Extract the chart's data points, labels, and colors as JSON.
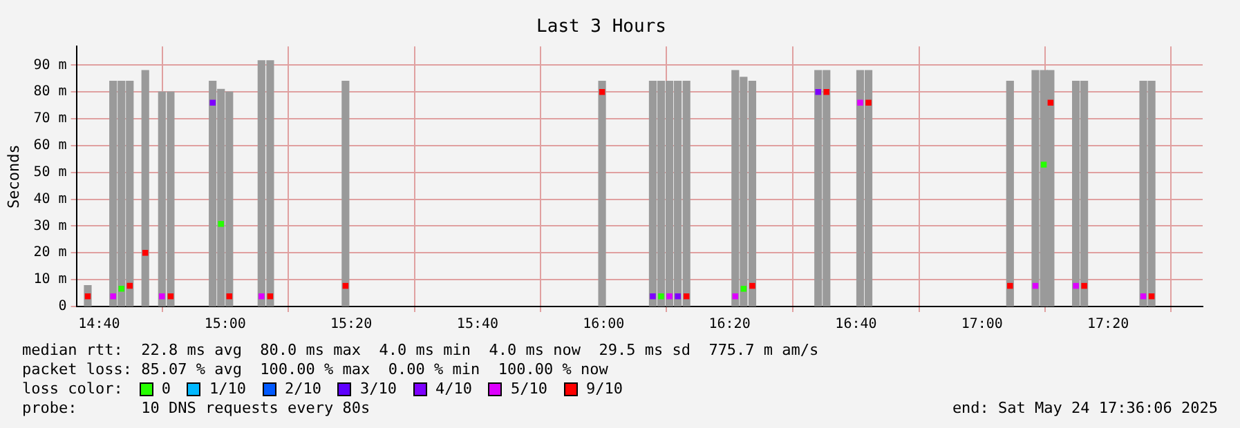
{
  "chart_data": {
    "type": "bar",
    "title": "Last 3 Hours",
    "ylabel": "Seconds",
    "legend_title": "loss color:",
    "legend": "bottom",
    "grid": true,
    "marker": "square",
    "x": [
      14.637,
      14.704,
      14.726,
      14.748,
      14.789,
      14.833,
      14.856,
      14.967,
      14.989,
      15.011,
      15.096,
      15.119,
      15.318,
      15.996,
      16.13,
      16.152,
      16.174,
      16.196,
      16.219,
      16.348,
      16.37,
      16.393,
      16.567,
      16.589,
      16.678,
      16.7,
      17.074,
      17.141,
      17.163,
      17.181,
      17.248,
      17.27,
      17.426,
      17.448
    ],
    "xlim": [
      14.607,
      17.583
    ],
    "xticks": [
      {
        "value": 14.667,
        "label": "14:40"
      },
      {
        "value": 15,
        "label": "15:00"
      },
      {
        "value": 15.333,
        "label": "15:20"
      },
      {
        "value": 15.667,
        "label": "15:40"
      },
      {
        "value": 16,
        "label": "16:00"
      },
      {
        "value": 16.333,
        "label": "16:20"
      },
      {
        "value": 16.667,
        "label": "16:40"
      },
      {
        "value": 17,
        "label": "17:00"
      },
      {
        "value": 17.333,
        "label": "17:20"
      }
    ],
    "ylim": [
      0,
      97
    ],
    "yticks": [
      0,
      {
        "value": 10,
        "label": "10 m"
      },
      {
        "value": 20,
        "label": "20 m"
      },
      {
        "value": 30,
        "label": "30 m"
      },
      {
        "value": 40,
        "label": "40 m"
      },
      {
        "value": 50,
        "label": "50 m"
      },
      {
        "value": 60,
        "label": "60 m"
      },
      {
        "value": 70,
        "label": "70 m"
      },
      {
        "value": 80,
        "label": "80 m"
      },
      {
        "value": 90,
        "label": "90 m"
      }
    ],
    "series": [
      {
        "color": "#9a9a9a",
        "values": [
          7.8,
          84,
          84,
          84,
          88,
          80,
          80,
          84,
          81,
          80,
          91.7,
          91.7,
          84,
          84,
          84,
          84,
          84,
          84,
          84,
          88,
          85.5,
          84,
          88,
          88,
          88,
          88,
          84,
          88,
          88,
          88,
          84,
          84,
          84,
          84
        ]
      },
      {
        "type": "scatter",
        "name": "0",
        "color": "#26ff00",
        "values": [
          null,
          null,
          6.6,
          null,
          null,
          null,
          null,
          null,
          30.8,
          null,
          null,
          null,
          null,
          null,
          null,
          3.8,
          null,
          null,
          null,
          null,
          6.6,
          null,
          null,
          null,
          null,
          null,
          null,
          null,
          52.9,
          null,
          null,
          null,
          null,
          null
        ]
      },
      {
        "type": "scatter",
        "name": "1/10",
        "color": "#00b8ff",
        "values": [
          null,
          null,
          null,
          null,
          null,
          null,
          null,
          null,
          null,
          null,
          null,
          null,
          null,
          null,
          null,
          null,
          null,
          null,
          null,
          null,
          null,
          null,
          null,
          null,
          null,
          null,
          null,
          null,
          null,
          null,
          null,
          null,
          null,
          null
        ]
      },
      {
        "type": "scatter",
        "name": "2/10",
        "color": "#0059ff",
        "values": [
          null,
          null,
          null,
          null,
          null,
          null,
          null,
          null,
          null,
          null,
          null,
          null,
          null,
          null,
          null,
          null,
          null,
          null,
          null,
          null,
          null,
          null,
          null,
          null,
          null,
          null,
          null,
          null,
          null,
          null,
          null,
          null,
          null,
          null
        ]
      },
      {
        "type": "scatter",
        "name": "3/10",
        "color": "#5e00ff",
        "values": [
          null,
          null,
          null,
          null,
          null,
          null,
          null,
          null,
          null,
          null,
          null,
          null,
          null,
          null,
          null,
          null,
          null,
          null,
          null,
          null,
          null,
          null,
          null,
          null,
          null,
          null,
          null,
          null,
          null,
          null,
          null,
          null,
          null,
          null
        ]
      },
      {
        "type": "scatter",
        "name": "4/10",
        "color": "#7e00ff",
        "values": [
          null,
          null,
          null,
          null,
          null,
          null,
          null,
          76,
          null,
          null,
          null,
          null,
          null,
          null,
          3.8,
          null,
          null,
          3.8,
          null,
          null,
          null,
          null,
          80,
          null,
          null,
          null,
          null,
          null,
          null,
          null,
          null,
          null,
          null,
          null
        ]
      },
      {
        "type": "scatter",
        "name": "5/10",
        "color": "#dd00ff",
        "values": [
          null,
          3.8,
          null,
          null,
          null,
          3.8,
          null,
          null,
          null,
          null,
          3.8,
          null,
          null,
          null,
          null,
          null,
          3.8,
          null,
          null,
          3.8,
          null,
          null,
          null,
          null,
          76,
          null,
          null,
          7.7,
          null,
          null,
          7.7,
          null,
          3.8,
          null
        ]
      },
      {
        "type": "scatter",
        "name": "9/10",
        "color": "#ff0000",
        "values": [
          3.8,
          null,
          null,
          7.7,
          20,
          null,
          3.8,
          null,
          null,
          3.8,
          null,
          3.8,
          7.7,
          80,
          null,
          null,
          null,
          null,
          3.8,
          null,
          null,
          7.7,
          null,
          80,
          null,
          76,
          7.7,
          null,
          null,
          76,
          null,
          7.7,
          null,
          3.8
        ]
      }
    ],
    "annotations": [
      "median rtt:  22.8 ms avg  80.0 ms max  4.0 ms min  4.0 ms now  29.5 ms sd  775.7 m am/s",
      "packet loss: 85.07 % avg  100.00 % max  0.00 % min  100.00 % now",
      "probe:       10 DNS requests every 80s",
      "end: Sat May 24 17:36:06 2025"
    ]
  }
}
